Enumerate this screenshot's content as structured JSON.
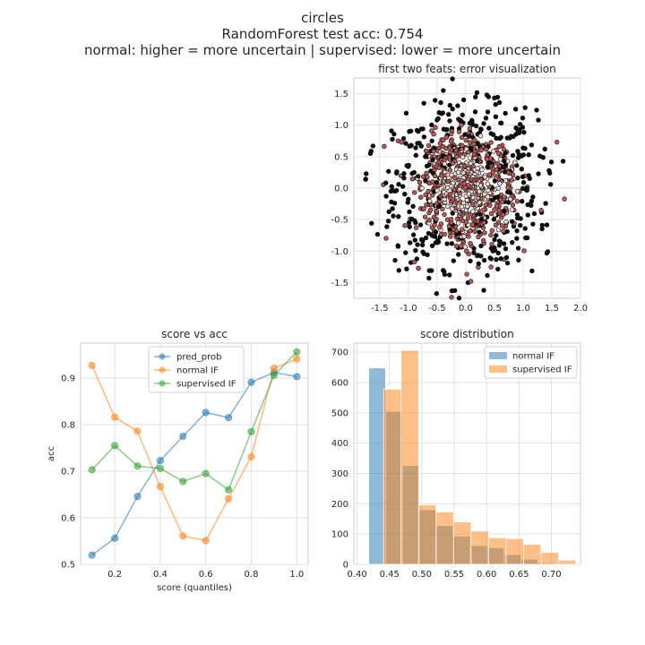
{
  "suptitle": {
    "line1": "circles",
    "line2": "RandomForest test acc: 0.754",
    "line3": "normal: higher = more uncertain | supervised: lower = more uncertain"
  },
  "chart_data": [
    {
      "type": "scatter",
      "title": "first two feats: error visualization",
      "xlabel": "",
      "ylabel": "",
      "xlim": [
        -1.95,
        2.0
      ],
      "ylim": [
        -1.75,
        1.75
      ],
      "xticks": [
        -1.5,
        -1.0,
        -0.5,
        0.0,
        0.5,
        1.0,
        1.5,
        2.0
      ],
      "yticks": [
        -1.5,
        -1.0,
        -0.5,
        0.0,
        0.5,
        1.0,
        1.5
      ],
      "grid": true,
      "point_colors": [
        "#0d0d0d",
        "#b85a55",
        "#f3dcd7"
      ],
      "note_points": "~1000 points distributed in a disc of radius ~1.6; dark outer ring, reddish middle ring, pale center"
    },
    {
      "type": "line",
      "title": "score vs acc",
      "xlabel": "score (quantiles)",
      "ylabel": "acc",
      "xlim": [
        0.05,
        1.05
      ],
      "ylim": [
        0.5,
        0.975
      ],
      "xticks": [
        0.2,
        0.4,
        0.6,
        0.8,
        1.0
      ],
      "yticks": [
        0.5,
        0.6,
        0.7,
        0.8,
        0.9
      ],
      "grid": true,
      "legend": "top-center",
      "x": [
        0.1,
        0.2,
        0.3,
        0.4,
        0.5,
        0.6,
        0.7,
        0.8,
        0.9,
        1.0
      ],
      "series": [
        {
          "name": "pred_prob",
          "color": "#1f77b4",
          "values": [
            0.52,
            0.556,
            0.646,
            0.723,
            0.775,
            0.826,
            0.815,
            0.891,
            0.912,
            0.903
          ]
        },
        {
          "name": "normal IF",
          "color": "#ff7f0e",
          "values": [
            0.927,
            0.816,
            0.786,
            0.667,
            0.561,
            0.551,
            0.641,
            0.731,
            0.921,
            0.941
          ]
        },
        {
          "name": "supervised IF",
          "color": "#2ca02c",
          "values": [
            0.703,
            0.755,
            0.711,
            0.706,
            0.678,
            0.695,
            0.66,
            0.785,
            0.906,
            0.956
          ]
        }
      ]
    },
    {
      "type": "bar",
      "title": "score distribution",
      "xlabel": "",
      "ylabel": "",
      "xlim": [
        0.395,
        0.745
      ],
      "ylim": [
        0,
        730
      ],
      "xticks": [
        0.4,
        0.45,
        0.5,
        0.55,
        0.6,
        0.65,
        0.7
      ],
      "yticks": [
        0,
        100,
        200,
        300,
        400,
        500,
        600,
        700
      ],
      "grid": true,
      "legend": "top-right",
      "series": [
        {
          "name": "normal IF",
          "color": "#1f77b4",
          "bins": [
            [
              0.418,
              0.444,
              648
            ],
            [
              0.444,
              0.47,
              505
            ],
            [
              0.47,
              0.496,
              326
            ],
            [
              0.496,
              0.522,
              180
            ],
            [
              0.522,
              0.549,
              128
            ],
            [
              0.549,
              0.575,
              93
            ],
            [
              0.575,
              0.601,
              62
            ],
            [
              0.601,
              0.627,
              55
            ],
            [
              0.627,
              0.653,
              32
            ],
            [
              0.653,
              0.679,
              17
            ],
            [
              0.679,
              0.705,
              5
            ]
          ]
        },
        {
          "name": "supervised IF",
          "color": "#ff7f0e",
          "bins": [
            [
              0.441,
              0.468,
              578
            ],
            [
              0.468,
              0.495,
              706
            ],
            [
              0.495,
              0.522,
              196
            ],
            [
              0.522,
              0.549,
              173
            ],
            [
              0.549,
              0.576,
              140
            ],
            [
              0.576,
              0.603,
              110
            ],
            [
              0.603,
              0.63,
              88
            ],
            [
              0.63,
              0.657,
              85
            ],
            [
              0.657,
              0.684,
              66
            ],
            [
              0.684,
              0.711,
              40
            ],
            [
              0.711,
              0.738,
              14
            ]
          ]
        }
      ]
    }
  ]
}
